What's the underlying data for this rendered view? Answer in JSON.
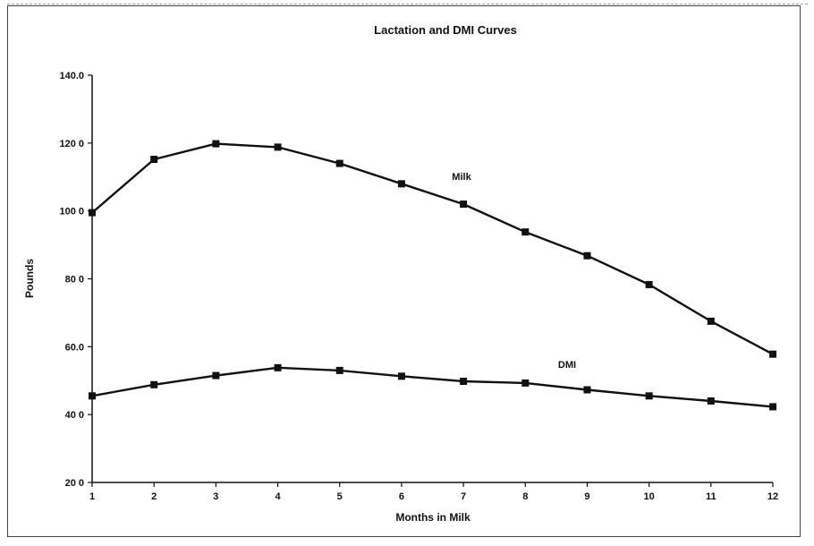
{
  "chart_data": {
    "type": "line",
    "title": "Lactation and DMI Curves",
    "xlabel": "Months in Milk",
    "ylabel": "Pounds",
    "x": [
      1,
      2,
      3,
      4,
      5,
      6,
      7,
      8,
      9,
      10,
      11,
      12
    ],
    "x_tick_labels": [
      "1",
      "2",
      "3",
      "4",
      "5",
      "6",
      "7",
      "8",
      "9",
      "10",
      "11",
      "12"
    ],
    "ylim": [
      20,
      140
    ],
    "y_tick_labels": [
      "20 0",
      "40 0",
      "60.0",
      "80 0",
      "100 0",
      "120 0",
      "140.0"
    ],
    "grid": false,
    "legend": "none (series labeled inline)",
    "series": [
      {
        "name": "Milk",
        "values": [
          99.5,
          115.2,
          119.8,
          118.8,
          114.0,
          108.0,
          102.0,
          93.8,
          86.8,
          78.3,
          67.5,
          57.8
        ]
      },
      {
        "name": "DMI",
        "values": [
          45.5,
          48.8,
          51.5,
          53.8,
          53.0,
          51.3,
          49.8,
          49.3,
          47.3,
          45.5,
          44.0,
          42.3
        ]
      }
    ],
    "colors": {
      "line": "#111111",
      "marker": "#111111"
    },
    "marker": "square"
  }
}
